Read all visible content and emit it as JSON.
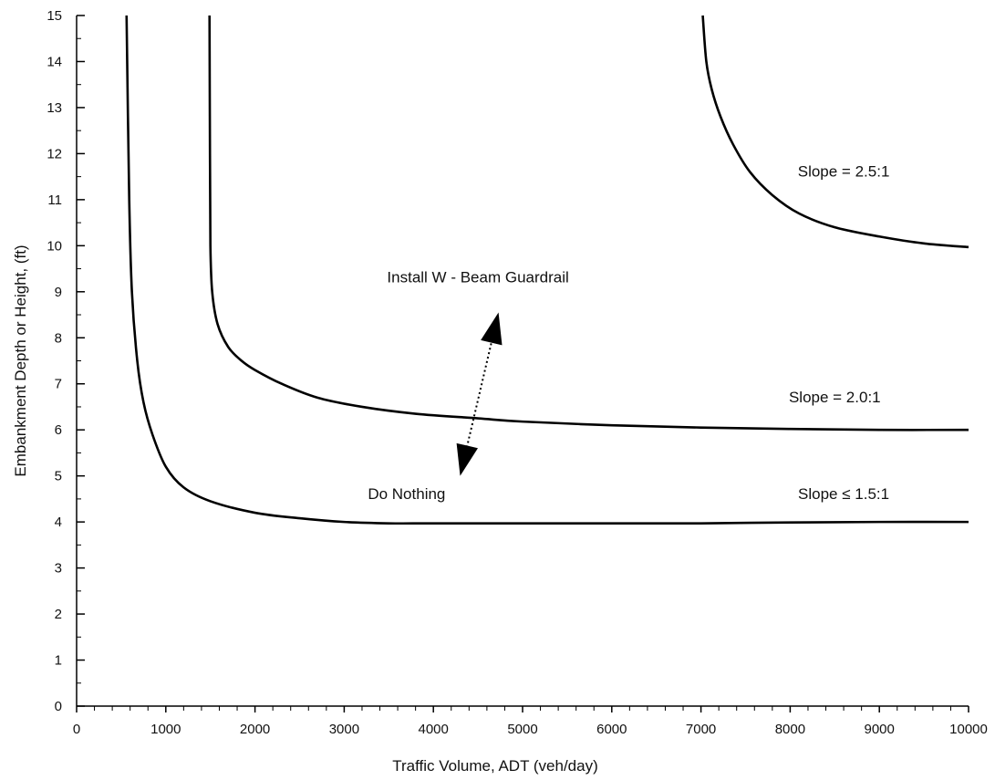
{
  "chart_data": {
    "type": "line",
    "title": "",
    "xlabel": "Traffic Volume, ADT (veh/day)",
    "ylabel": "Embankment Depth or Height, (ft)",
    "xlim": [
      0,
      10000
    ],
    "ylim": [
      0,
      15
    ],
    "grid": false,
    "x_ticks": [
      0,
      1000,
      2000,
      3000,
      4000,
      5000,
      6000,
      7000,
      8000,
      9000,
      10000
    ],
    "x_tick_labels": [
      "0",
      "1000",
      "2000",
      "3000",
      "4000",
      "5000",
      "6000",
      "7000",
      "8000",
      "9000",
      "10000"
    ],
    "y_ticks": [
      0,
      1,
      2,
      3,
      4,
      5,
      6,
      7,
      8,
      9,
      10,
      11,
      12,
      13,
      14,
      15
    ],
    "y_tick_labels": [
      "0",
      "1",
      "2",
      "3",
      "4",
      "5",
      "6",
      "7",
      "8",
      "9",
      "10",
      "11",
      "12",
      "13",
      "14",
      "15"
    ],
    "series": [
      {
        "name": "Slope ≤ 1.5:1",
        "x": [
          560,
          590,
          620,
          680,
          750,
          850,
          1000,
          1200,
          1500,
          2000,
          2500,
          3000,
          3500,
          4000,
          5000,
          6000,
          7000,
          8000,
          9000,
          10000
        ],
        "y": [
          15,
          11,
          9,
          7.5,
          6.6,
          5.9,
          5.2,
          4.75,
          4.45,
          4.2,
          4.08,
          4.0,
          3.97,
          3.97,
          3.97,
          3.97,
          3.97,
          3.99,
          4.0,
          4.0
        ]
      },
      {
        "name": "Slope = 2.0:1",
        "x": [
          1490,
          1495,
          1500,
          1520,
          1580,
          1700,
          1850,
          2000,
          2300,
          2700,
          3200,
          3800,
          4500,
          5000,
          6000,
          7000,
          8000,
          9000,
          10000
        ],
        "y": [
          15,
          12,
          10,
          9,
          8.3,
          7.8,
          7.5,
          7.3,
          7.0,
          6.7,
          6.5,
          6.35,
          6.25,
          6.18,
          6.1,
          6.05,
          6.02,
          6.0,
          6.0
        ]
      },
      {
        "name": "Slope = 2.5:1",
        "x": [
          7020,
          7060,
          7120,
          7220,
          7360,
          7550,
          7800,
          8100,
          8500,
          9000,
          9500,
          10000
        ],
        "y": [
          15,
          14,
          13.4,
          12.8,
          12.2,
          11.6,
          11.1,
          10.7,
          10.4,
          10.2,
          10.05,
          9.97
        ]
      }
    ],
    "annotations": [
      {
        "text": "Install W - Beam Guardrail",
        "x": 4500,
        "y": 9.2
      },
      {
        "text": "Do Nothing",
        "x": 3700,
        "y": 4.5
      },
      {
        "text": "Slope = 2.5:1",
        "x": 8600,
        "y": 11.5
      },
      {
        "text": "Slope = 2.0:1",
        "x": 8500,
        "y": 6.6
      },
      {
        "text": "Slope ≤ 1.5:1",
        "x": 8600,
        "y": 4.5
      }
    ],
    "arrow": {
      "from": [
        4300,
        5.0
      ],
      "to": [
        4730,
        8.55
      ]
    }
  }
}
